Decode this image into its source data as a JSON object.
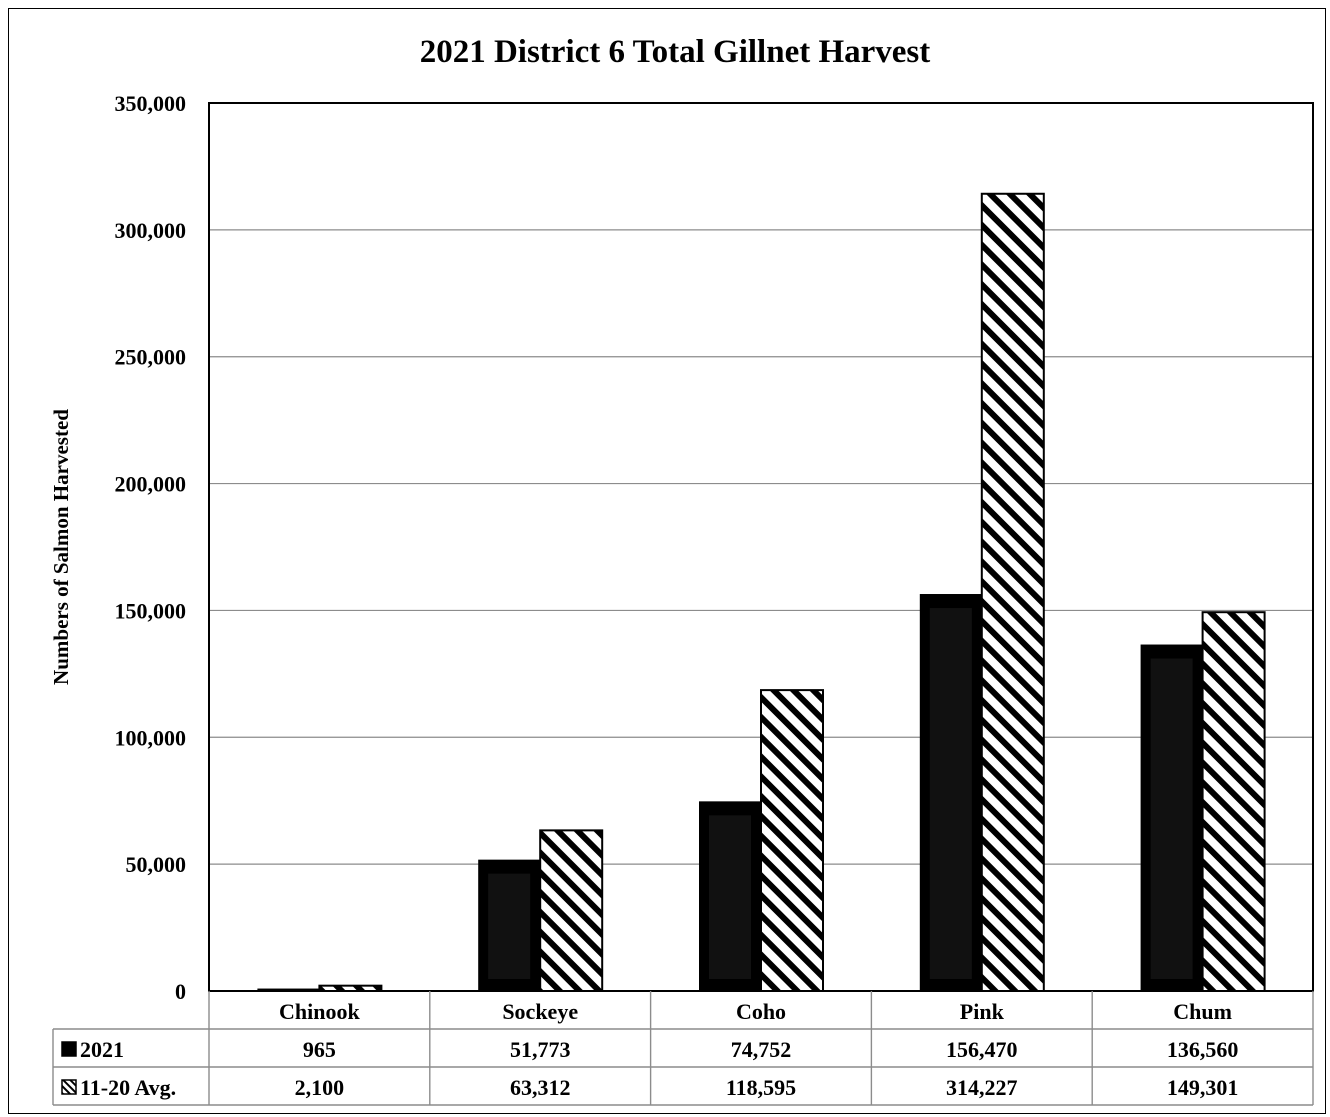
{
  "chart_data": {
    "type": "bar",
    "title": "2021 District 6 Total Gillnet Harvest",
    "xlabel": "",
    "ylabel": "Numbers of Salmon Harvested",
    "ylim": [
      0,
      350000
    ],
    "yticks": [
      0,
      50000,
      100000,
      150000,
      200000,
      250000,
      300000,
      350000
    ],
    "ytick_labels": [
      "0",
      "50,000",
      "100,000",
      "150,000",
      "200,000",
      "250,000",
      "300,000",
      "350,000"
    ],
    "grid": true,
    "legend": "data-table",
    "categories": [
      "Chinook",
      "Sockeye",
      "Coho",
      "Pink",
      "Chum"
    ],
    "series": [
      {
        "name": "2021",
        "values": [
          965,
          51773,
          74752,
          156470,
          136560
        ],
        "labels": [
          "965",
          "51,773",
          "74,752",
          "156,470",
          "136,560"
        ],
        "fill": "solid-black",
        "color": "#000000"
      },
      {
        "name": "11-20 Avg.",
        "values": [
          2100,
          63312,
          118595,
          314227,
          149301
        ],
        "labels": [
          "2,100",
          "63,312",
          "118,595",
          "314,227",
          "149,301"
        ],
        "fill": "diagonal-hatch",
        "color": "#000000"
      }
    ]
  }
}
